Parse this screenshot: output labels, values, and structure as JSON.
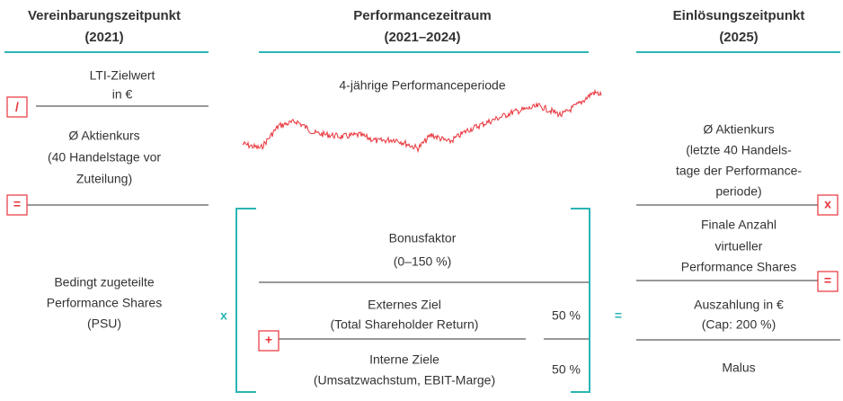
{
  "left": {
    "title": "Vereinbarungszeitpunkt",
    "year": "(2021)",
    "items": [
      [
        "LTI-Zielwert",
        "in €"
      ],
      [
        "Ø Aktienkurs",
        "(40 Handelstage vor",
        "Zuteilung)"
      ],
      [
        "Bedingt zugeteilte",
        "Performance Shares",
        "(PSU)"
      ]
    ],
    "operators": [
      "/",
      "="
    ]
  },
  "center": {
    "title": "Performancezeitraum",
    "year": "(2021–2024)",
    "period": "4-jährige Performanceperiode",
    "bonus": [
      "Bonusfaktor",
      "(0–150 %)"
    ],
    "goals": [
      {
        "lines": [
          "Externes Ziel",
          "(Total Shareholder Return)"
        ],
        "weight": "50 %"
      },
      {
        "lines": [
          "Interne Ziele",
          "(Umsatzwachstum, EBIT-Marge)"
        ],
        "weight": "50 %"
      }
    ],
    "operators": [
      "x",
      "+",
      "="
    ]
  },
  "right": {
    "title": "Einlösungszeitpunkt",
    "year": "(2025)",
    "items": [
      [
        "Ø Aktienkurs",
        "(letzte 40 Handels-",
        "tage der Performance-",
        "periode)"
      ],
      [
        "Finale Anzahl",
        "virtueller",
        "Performance Shares"
      ],
      [
        "Auszahlung in €",
        "(Cap: 200 %)"
      ],
      [
        "Malus"
      ]
    ],
    "operators": [
      "x",
      "="
    ]
  }
}
